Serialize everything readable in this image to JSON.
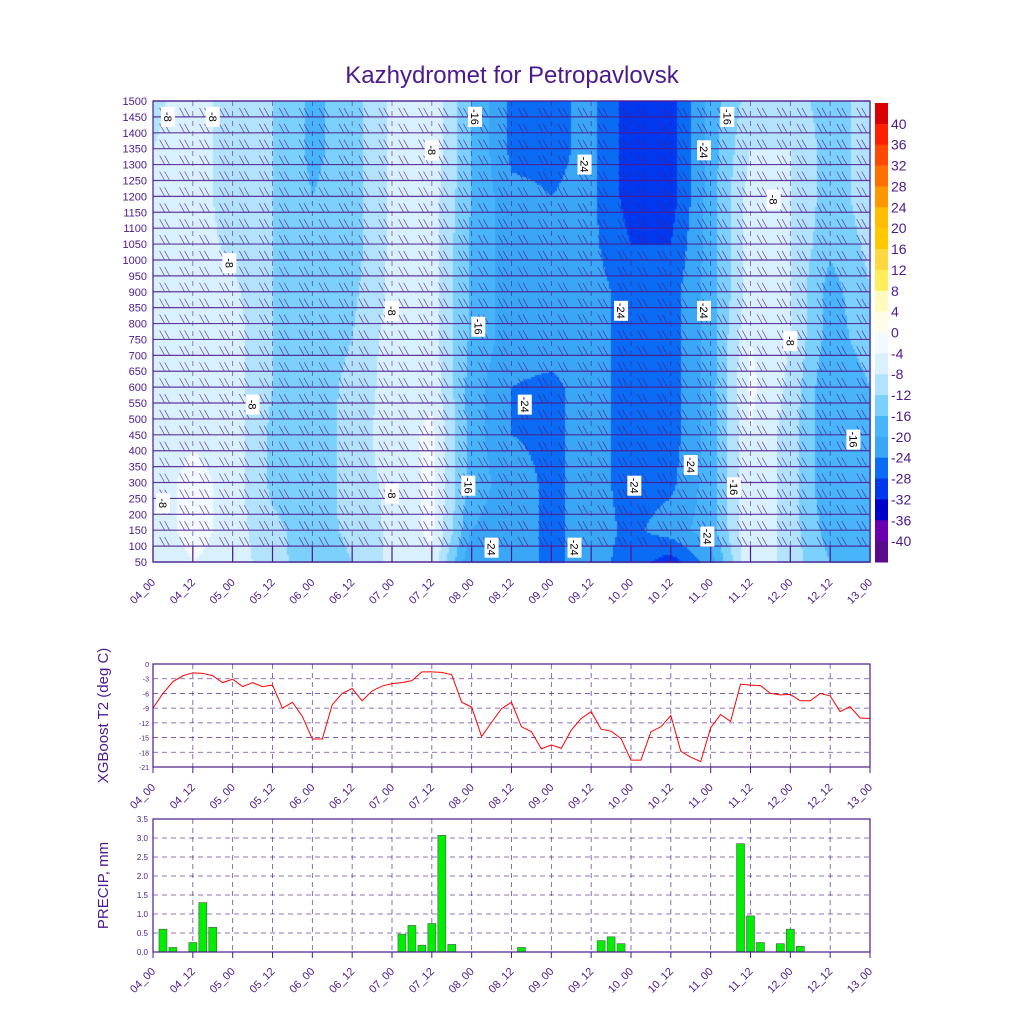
{
  "title": "Kazhydromet for Petropavlovsk",
  "colors": {
    "axis": "#4b1a8c",
    "line": "#ff0000",
    "bar": "#00ee00",
    "bar_edge": "#555555"
  },
  "time_ticks": [
    "04_00",
    "04_12",
    "05_00",
    "05_12",
    "06_00",
    "06_12",
    "07_00",
    "07_12",
    "08_00",
    "08_12",
    "09_00",
    "09_12",
    "10_00",
    "10_12",
    "11_00",
    "11_12",
    "12_00",
    "12_12",
    "13_00"
  ],
  "chart_data": [
    {
      "type": "heatmap",
      "name": "temperature-cross-section",
      "title": "Kazhydromet for Petropavlovsk",
      "xlabel": "",
      "ylabel": "",
      "x_hours_range": [
        0,
        216
      ],
      "ylim": [
        50,
        1500
      ],
      "y_ticks": [
        50,
        100,
        150,
        200,
        250,
        300,
        350,
        400,
        450,
        500,
        550,
        600,
        650,
        700,
        750,
        800,
        850,
        900,
        950,
        1000,
        1050,
        1100,
        1150,
        1200,
        1250,
        1300,
        1350,
        1400,
        1450,
        1500
      ],
      "grid_hours": [
        0,
        12,
        24,
        36,
        48,
        60,
        72,
        84,
        96,
        108,
        120,
        132,
        144,
        156,
        168,
        180,
        192,
        204,
        216
      ],
      "grid_levels": [
        50,
        150,
        300,
        450,
        600,
        750,
        900,
        1050,
        1200,
        1350,
        1500
      ],
      "grid_values": [
        [
          -8,
          -7,
          -7,
          -7,
          -7,
          -7,
          -7,
          -7,
          -7,
          -8,
          -9
        ],
        [
          -4,
          -2,
          -2,
          -5,
          -6,
          -6,
          -6,
          -6,
          -6,
          -6,
          -6
        ],
        [
          -6,
          -6,
          -6,
          -6,
          -6,
          -6,
          -7,
          -9,
          -10,
          -10,
          -10
        ],
        [
          -10,
          -11,
          -13,
          -13,
          -12,
          -12,
          -12,
          -12,
          -12,
          -12,
          -12
        ],
        [
          -15,
          -14,
          -15,
          -15,
          -14,
          -14,
          -14,
          -15,
          -16,
          -17,
          -17
        ],
        [
          -12,
          -11,
          -10,
          -10,
          -11,
          -12,
          -13,
          -14,
          -14,
          -14,
          -14
        ],
        [
          -7,
          -7,
          -7,
          -6,
          -6,
          -6,
          -7,
          -7,
          -7,
          -7,
          -7
        ],
        [
          -5,
          -3,
          -3,
          -3,
          -5,
          -6,
          -6,
          -6,
          -6,
          -5,
          -5
        ],
        [
          -24,
          -20,
          -18,
          -18,
          -18,
          -17,
          -17,
          -17,
          -16,
          -16,
          -16
        ],
        [
          -22,
          -22,
          -22,
          -24,
          -24,
          -22,
          -22,
          -22,
          -23,
          -25,
          -25
        ],
        [
          -25,
          -25,
          -25,
          -25,
          -25,
          -22,
          -22,
          -22,
          -24,
          -25,
          -25
        ],
        [
          -22,
          -22,
          -22,
          -22,
          -22,
          -22,
          -22,
          -23,
          -23,
          -23,
          -23
        ],
        [
          -26,
          -25,
          -26,
          -26,
          -26,
          -26,
          -26,
          -28,
          -30,
          -30,
          -30
        ],
        [
          -30,
          -22,
          -25,
          -26,
          -26,
          -26,
          -26,
          -28,
          -30,
          -30,
          -30
        ],
        [
          -22,
          -18,
          -18,
          -18,
          -18,
          -18,
          -18,
          -18,
          -18,
          -18,
          -18
        ],
        [
          -4,
          -4,
          -4,
          -4,
          -3,
          -4,
          -6,
          -6,
          -6,
          -8,
          -10
        ],
        [
          -10,
          -10,
          -10,
          -10,
          -9,
          -8,
          -8,
          -8,
          -8,
          -8,
          -10
        ],
        [
          -16,
          -18,
          -20,
          -20,
          -20,
          -18,
          -18,
          -15,
          -14,
          -14,
          -14
        ],
        [
          -18,
          -18,
          -18,
          -17,
          -16,
          -14,
          -12,
          -11,
          -10,
          -10,
          -10
        ]
      ],
      "colorbar": {
        "labels": [
          "40",
          "36",
          "32",
          "28",
          "24",
          "20",
          "16",
          "12",
          "8",
          "4",
          "0",
          "-4",
          "-8",
          "-12",
          "-16",
          "-20",
          "-24",
          "-28",
          "-32",
          "-36",
          "-40"
        ],
        "edges": [
          -40,
          -36,
          -32,
          -28,
          -24,
          -20,
          -16,
          -12,
          -8,
          -4,
          0,
          4,
          8,
          12,
          16,
          20,
          24,
          28,
          32,
          36,
          40
        ],
        "colors": [
          "#5a0a8c",
          "#6a00b0",
          "#0000cc",
          "#0038f0",
          "#0a6cf5",
          "#3aa6f6",
          "#48b5fb",
          "#7cd0fc",
          "#b2e2fc",
          "#d9f1fe",
          "#f2f9ff",
          "#fffde8",
          "#fffbbf",
          "#ffee5a",
          "#ffd840",
          "#ffc800",
          "#ffbf00",
          "#ff9800",
          "#ff7000",
          "#ff4800",
          "#ff2000",
          "#d80000"
        ]
      },
      "contour_labels": [
        {
          "text": "-8",
          "hour": 4.5,
          "level": 1450
        },
        {
          "text": "-8",
          "hour": 18,
          "level": 1450
        },
        {
          "text": "-8",
          "hour": 84,
          "level": 1345
        },
        {
          "text": "-16",
          "hour": 97,
          "level": 1450
        },
        {
          "text": "-24",
          "hour": 130,
          "level": 1300
        },
        {
          "text": "-16",
          "hour": 173,
          "level": 1450
        },
        {
          "text": "-24",
          "hour": 166,
          "level": 1345
        },
        {
          "text": "-8",
          "hour": 187,
          "level": 1190
        },
        {
          "text": "-8",
          "hour": 23,
          "level": 990
        },
        {
          "text": "-8",
          "hour": 72,
          "level": 840
        },
        {
          "text": "-16",
          "hour": 98,
          "level": 790
        },
        {
          "text": "-24",
          "hour": 141,
          "level": 840
        },
        {
          "text": "-24",
          "hour": 166,
          "level": 840
        },
        {
          "text": "-8",
          "hour": 192,
          "level": 745
        },
        {
          "text": "-8",
          "hour": 30,
          "level": 545
        },
        {
          "text": "-24",
          "hour": 112,
          "level": 545
        },
        {
          "text": "-16",
          "hour": 211,
          "level": 435
        },
        {
          "text": "-24",
          "hour": 162,
          "level": 355
        },
        {
          "text": "-8",
          "hour": 3,
          "level": 235
        },
        {
          "text": "-8",
          "hour": 72,
          "level": 265
        },
        {
          "text": "-16",
          "hour": 95,
          "level": 290
        },
        {
          "text": "-24",
          "hour": 145,
          "level": 290
        },
        {
          "text": "-16",
          "hour": 175,
          "level": 285
        },
        {
          "text": "-24",
          "hour": 167,
          "level": 130
        },
        {
          "text": "-24",
          "hour": 102,
          "level": 95
        },
        {
          "text": "-24",
          "hour": 127,
          "level": 95
        }
      ]
    },
    {
      "type": "line",
      "name": "xgboost-t2",
      "ylabel": "XGBoost T2 (deg C)",
      "ylim": [
        -21,
        0
      ],
      "y_ticks": [
        "0",
        "-3",
        "-6",
        "-9",
        "-12",
        "-15",
        "-18",
        "-21"
      ],
      "x_hours_step": 3,
      "values": [
        -9.0,
        -6.0,
        -3.6,
        -2.4,
        -1.8,
        -1.9,
        -2.4,
        -3.8,
        -3.1,
        -4.6,
        -3.8,
        -4.6,
        -4.3,
        -9.0,
        -7.8,
        -10.7,
        -15.3,
        -15.3,
        -8.3,
        -6.0,
        -5.0,
        -7.5,
        -5.5,
        -4.5,
        -4.0,
        -3.8,
        -3.4,
        -1.6,
        -1.6,
        -1.7,
        -2.2,
        -7.8,
        -8.8,
        -14.8,
        -11.9,
        -9.1,
        -7.8,
        -12.8,
        -13.8,
        -17.3,
        -16.5,
        -17.2,
        -13.5,
        -11.1,
        -9.7,
        -13.3,
        -13.7,
        -15.2,
        -19.6,
        -19.6,
        -13.8,
        -12.8,
        -10.5,
        -17.8,
        -19.0,
        -19.9,
        -13.0,
        -10.3,
        -11.7,
        -4.1,
        -4.3,
        -4.4,
        -6.0,
        -6.3,
        -6.2,
        -7.5,
        -7.5,
        -6.0,
        -6.5,
        -9.7,
        -8.7,
        -11.0,
        -11.1
      ]
    },
    {
      "type": "bar",
      "name": "precip",
      "ylabel": "PRECIP, mm",
      "ylim": [
        0,
        3.5
      ],
      "y_ticks": [
        "3.5",
        "3.0",
        "2.5",
        "2.0",
        "1.5",
        "1.0",
        "0.5",
        "0.0"
      ],
      "bars": [
        {
          "hour": 3,
          "value": 0.6
        },
        {
          "hour": 6,
          "value": 0.12
        },
        {
          "hour": 12,
          "value": 0.25
        },
        {
          "hour": 15,
          "value": 1.3
        },
        {
          "hour": 18,
          "value": 0.65
        },
        {
          "hour": 75,
          "value": 0.47
        },
        {
          "hour": 78,
          "value": 0.7
        },
        {
          "hour": 81,
          "value": 0.18
        },
        {
          "hour": 84,
          "value": 0.75
        },
        {
          "hour": 87,
          "value": 3.07
        },
        {
          "hour": 90,
          "value": 0.2
        },
        {
          "hour": 111,
          "value": 0.12
        },
        {
          "hour": 135,
          "value": 0.3
        },
        {
          "hour": 138,
          "value": 0.4
        },
        {
          "hour": 141,
          "value": 0.22
        },
        {
          "hour": 177,
          "value": 2.85
        },
        {
          "hour": 180,
          "value": 0.95
        },
        {
          "hour": 183,
          "value": 0.25
        },
        {
          "hour": 189,
          "value": 0.22
        },
        {
          "hour": 192,
          "value": 0.6
        },
        {
          "hour": 195,
          "value": 0.15
        }
      ]
    }
  ]
}
